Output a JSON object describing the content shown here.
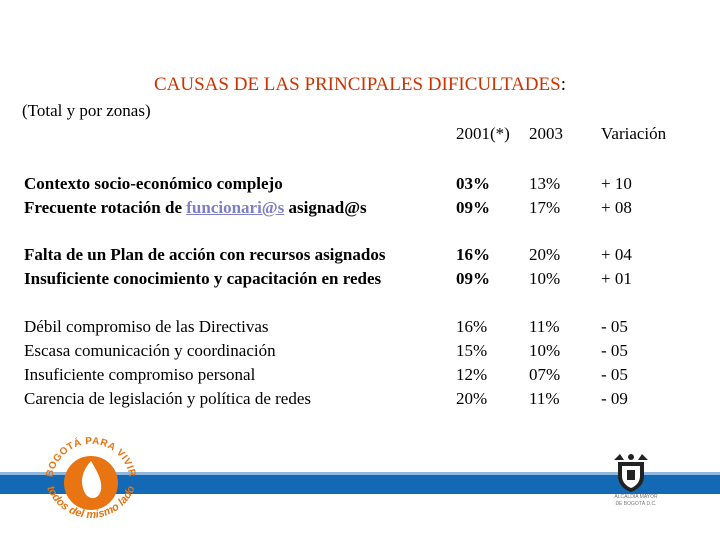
{
  "title": {
    "text": "CAUSAS DE LAS PRINCIPALES DIFICULTADES",
    "colon": ":"
  },
  "subtitle": "(Total y por zonas)",
  "headers": {
    "y2001": "2001(*)",
    "y2003": "2003",
    "variation": "Variación"
  },
  "groups": [
    {
      "rows": [
        {
          "label": "Contexto socio-económico complejo",
          "y2001": "03%",
          "y2003": "13%",
          "variation": "+ 10"
        },
        {
          "label_pre": "Frecuente rotación de ",
          "label_link": "funcionari@s",
          "label_post": " asignad@s",
          "y2001": "09%",
          "y2003": "17%",
          "variation": "+ 08"
        }
      ]
    },
    {
      "rows": [
        {
          "label": "Falta de un Plan de acción con recursos asignados",
          "y2001": "16%",
          "y2003": "20%",
          "variation": "+ 04"
        },
        {
          "label": "Insuficiente conocimiento y capacitación en redes",
          "y2001": "09%",
          "y2003": "10%",
          "variation": "+ 01"
        }
      ]
    },
    {
      "rows": [
        {
          "label": "Débil compromiso de las Directivas",
          "y2001": "16%",
          "y2003": "11%",
          "variation": "- 05"
        },
        {
          "label": "Escasa comunicación y coordinación",
          "y2001": "15%",
          "y2003": "10%",
          "variation": "- 05"
        },
        {
          "label": "Insuficiente compromiso personal",
          "y2001": "12%",
          "y2003": "07%",
          "variation": "- 05"
        },
        {
          "label": "Carencia de legislación y política de redes",
          "y2001": "20%",
          "y2003": "11%",
          "variation": "- 09"
        }
      ]
    }
  ],
  "logo": {
    "top_text": "BOGOTÁ PARA VIVIR",
    "bottom_text": "todos del mismo lado"
  },
  "seal": {
    "line1": "ALCALDÍA MAYOR",
    "line2": "DE BOGOTÁ D.C."
  },
  "colors": {
    "title": "#cc3300",
    "band": "#1469b5",
    "logo_orange": "#e87511"
  }
}
